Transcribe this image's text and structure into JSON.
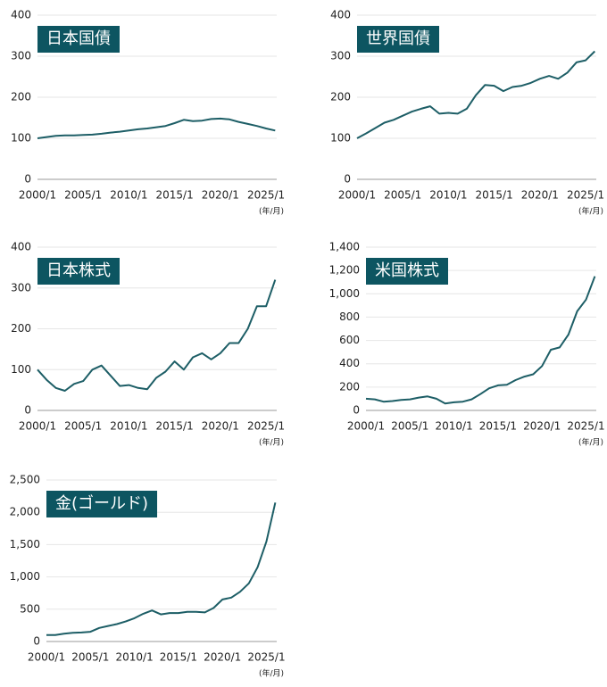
{
  "chart_data": [
    {
      "type": "line",
      "title": "日本国債",
      "x_unit": "(年/月)",
      "color": "#1d5e66",
      "grid": true,
      "x": [
        "2000/1",
        "2001/1",
        "2002/1",
        "2003/1",
        "2004/1",
        "2005/1",
        "2006/1",
        "2007/1",
        "2008/1",
        "2009/1",
        "2010/1",
        "2011/1",
        "2012/1",
        "2013/1",
        "2014/1",
        "2015/1",
        "2016/1",
        "2017/1",
        "2018/1",
        "2019/1",
        "2020/1",
        "2021/1",
        "2022/1",
        "2023/1",
        "2024/1",
        "2025/1",
        "2026/1"
      ],
      "values": [
        100,
        103,
        106,
        107,
        107,
        108,
        109,
        111,
        114,
        116,
        119,
        122,
        124,
        127,
        130,
        137,
        145,
        142,
        143,
        147,
        148,
        146,
        140,
        135,
        130,
        124,
        119
      ],
      "xlim": [
        "2000/1",
        "2026/3"
      ],
      "xticks": [
        "2000/1",
        "2005/1",
        "2010/1",
        "2015/1",
        "2020/1",
        "2025/1"
      ],
      "ylim": [
        0,
        400
      ],
      "yticks": [
        0,
        100,
        200,
        300,
        400
      ]
    },
    {
      "type": "line",
      "title": "世界国債",
      "x_unit": "(年/月)",
      "color": "#1d5e66",
      "grid": true,
      "x": [
        "2000/1",
        "2001/1",
        "2002/1",
        "2003/1",
        "2004/1",
        "2005/1",
        "2006/1",
        "2007/1",
        "2008/1",
        "2009/1",
        "2010/1",
        "2011/1",
        "2012/1",
        "2013/1",
        "2014/1",
        "2015/1",
        "2016/1",
        "2017/1",
        "2018/1",
        "2019/1",
        "2020/1",
        "2021/1",
        "2022/1",
        "2023/1",
        "2024/1",
        "2025/1",
        "2026/1"
      ],
      "values": [
        100,
        112,
        125,
        138,
        145,
        155,
        165,
        172,
        178,
        160,
        162,
        160,
        172,
        205,
        230,
        228,
        215,
        225,
        228,
        235,
        245,
        252,
        245,
        260,
        285,
        290,
        312
      ],
      "xlim": [
        "2000/1",
        "2026/3"
      ],
      "xticks": [
        "2000/1",
        "2005/1",
        "2010/1",
        "2015/1",
        "2020/1",
        "2025/1"
      ],
      "ylim": [
        0,
        400
      ],
      "yticks": [
        0,
        100,
        200,
        300,
        400
      ]
    },
    {
      "type": "line",
      "title": "日本株式",
      "x_unit": "(年/月)",
      "color": "#1d5e66",
      "grid": true,
      "x": [
        "2000/1",
        "2001/1",
        "2002/1",
        "2003/1",
        "2004/1",
        "2005/1",
        "2006/1",
        "2007/1",
        "2008/1",
        "2009/1",
        "2010/1",
        "2011/1",
        "2012/1",
        "2013/1",
        "2014/1",
        "2015/1",
        "2016/1",
        "2017/1",
        "2018/1",
        "2019/1",
        "2020/1",
        "2021/1",
        "2022/1",
        "2023/1",
        "2024/1",
        "2025/1",
        "2026/1"
      ],
      "values": [
        100,
        75,
        55,
        48,
        65,
        72,
        100,
        110,
        85,
        60,
        62,
        55,
        52,
        80,
        95,
        120,
        100,
        130,
        140,
        125,
        140,
        165,
        165,
        200,
        255,
        255,
        320
      ],
      "xlim": [
        "2000/1",
        "2026/3"
      ],
      "xticks": [
        "2000/1",
        "2005/1",
        "2010/1",
        "2015/1",
        "2020/1",
        "2025/1"
      ],
      "ylim": [
        0,
        400
      ],
      "yticks": [
        0,
        100,
        200,
        300,
        400
      ]
    },
    {
      "type": "line",
      "title": "米国株式",
      "x_unit": "(年/月)",
      "color": "#1d5e66",
      "grid": true,
      "x": [
        "2000/1",
        "2001/1",
        "2002/1",
        "2003/1",
        "2004/1",
        "2005/1",
        "2006/1",
        "2007/1",
        "2008/1",
        "2009/1",
        "2010/1",
        "2011/1",
        "2012/1",
        "2013/1",
        "2014/1",
        "2015/1",
        "2016/1",
        "2017/1",
        "2018/1",
        "2019/1",
        "2020/1",
        "2021/1",
        "2022/1",
        "2023/1",
        "2024/1",
        "2025/1",
        "2026/1"
      ],
      "values": [
        100,
        95,
        75,
        80,
        90,
        95,
        110,
        120,
        100,
        60,
        70,
        75,
        95,
        140,
        190,
        215,
        220,
        260,
        290,
        310,
        380,
        520,
        540,
        650,
        850,
        950,
        1150
      ],
      "xlim": [
        "2000/1",
        "2026/3"
      ],
      "xticks": [
        "2000/1",
        "2005/1",
        "2010/1",
        "2015/1",
        "2020/1",
        "2025/1"
      ],
      "ylim": [
        0,
        1400
      ],
      "yticks": [
        0,
        200,
        400,
        600,
        800,
        {
          "value": 1000,
          "label": "1,000"
        },
        {
          "value": 1200,
          "label": "1,200"
        },
        {
          "value": 1400,
          "label": "1,400"
        }
      ]
    },
    {
      "type": "line",
      "title": "金(ゴールド)",
      "x_unit": "(年/月)",
      "color": "#1d5e66",
      "grid": true,
      "x": [
        "2000/1",
        "2001/1",
        "2002/1",
        "2003/1",
        "2004/1",
        "2005/1",
        "2006/1",
        "2007/1",
        "2008/1",
        "2009/1",
        "2010/1",
        "2011/1",
        "2012/1",
        "2013/1",
        "2014/1",
        "2015/1",
        "2016/1",
        "2017/1",
        "2018/1",
        "2019/1",
        "2020/1",
        "2021/1",
        "2022/1",
        "2023/1",
        "2024/1",
        "2025/1",
        "2026/1"
      ],
      "values": [
        100,
        100,
        120,
        135,
        140,
        150,
        210,
        240,
        270,
        310,
        360,
        430,
        480,
        420,
        440,
        440,
        460,
        460,
        450,
        520,
        650,
        680,
        770,
        900,
        1150,
        1550,
        2150
      ],
      "xlim": [
        "2000/1",
        "2026/3"
      ],
      "xticks": [
        "2000/1",
        "2005/1",
        "2010/1",
        "2015/1",
        "2020/1",
        "2025/1"
      ],
      "ylim": [
        0,
        2500
      ],
      "yticks": [
        0,
        500,
        {
          "value": 1000,
          "label": "1,000"
        },
        {
          "value": 1500,
          "label": "1,500"
        },
        {
          "value": 2000,
          "label": "2,000"
        },
        {
          "value": 2500,
          "label": "2,500"
        }
      ]
    }
  ]
}
